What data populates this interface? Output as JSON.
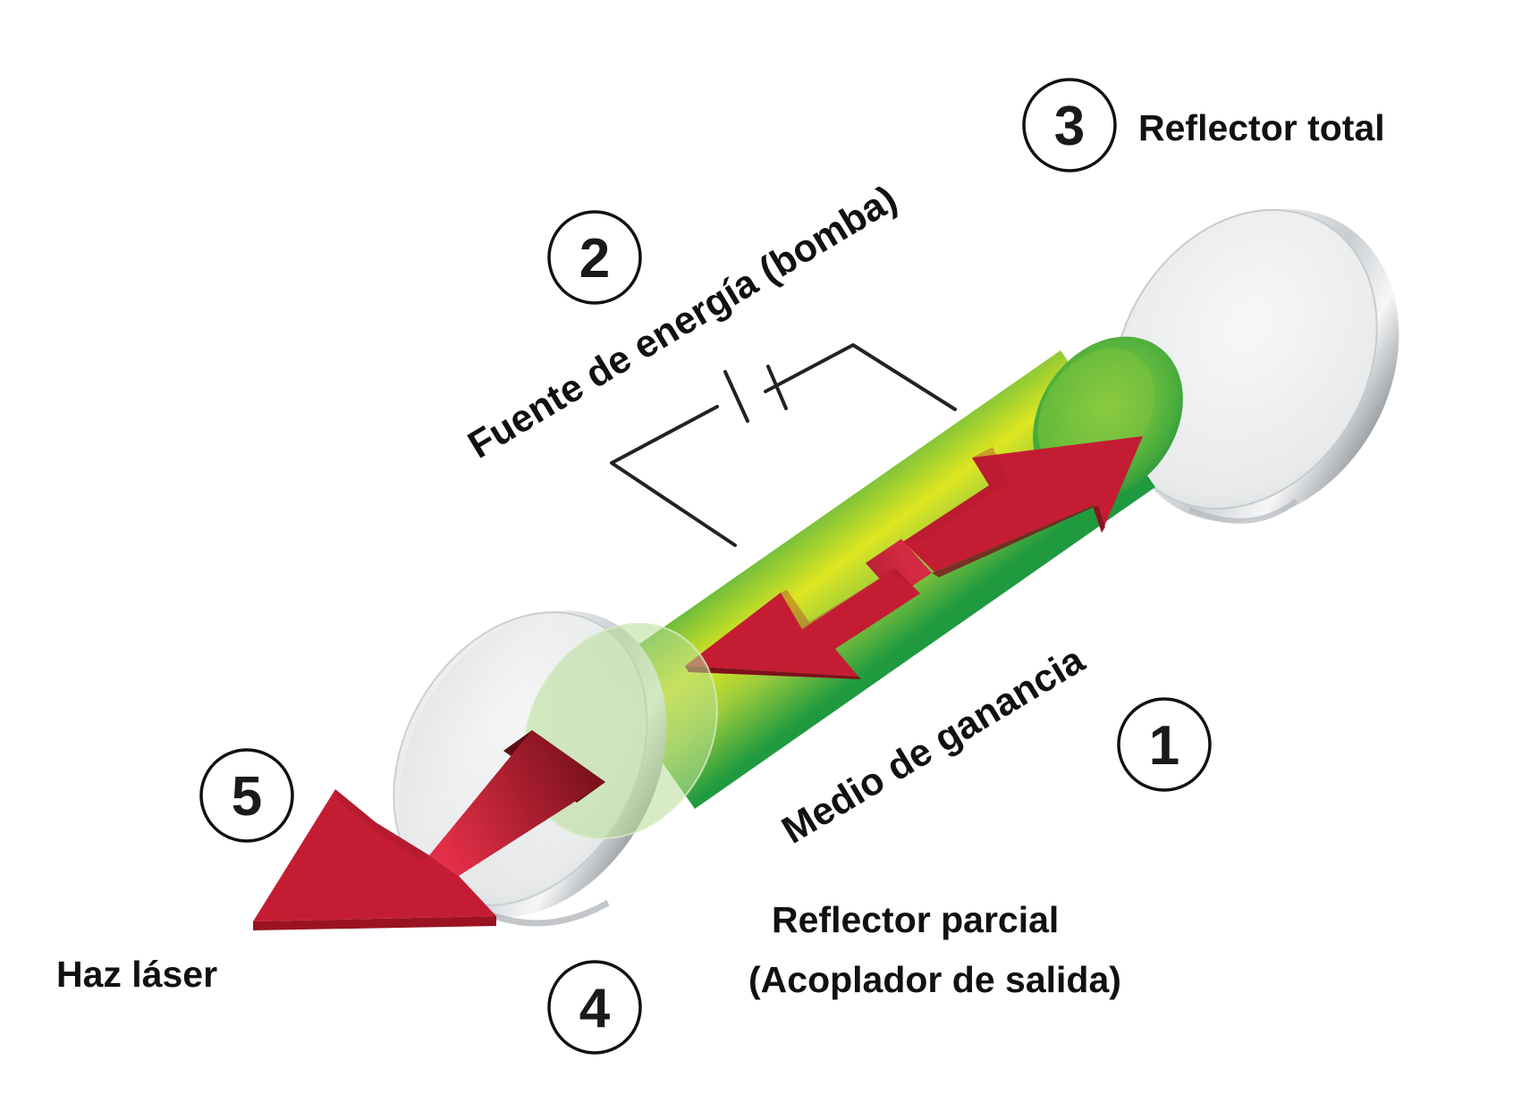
{
  "labels": {
    "gain_medium": "Medio de ganancia",
    "energy_source": "Fuente de energía (bomba)",
    "total_reflector": "Reflector total",
    "partial_reflector_line1": "Reflector parcial",
    "partial_reflector_line2": "(Acoplador de salida)",
    "laser_beam": "Haz láser"
  },
  "badges": {
    "gain_medium": "1",
    "energy_source": "2",
    "total_reflector": "3",
    "partial_reflector": "4",
    "laser_beam": "5"
  },
  "colors": {
    "gain_medium_dark": "#1f9a3f",
    "gain_medium_light": "#d8e41f",
    "beam_red": "#e8304a",
    "beam_dark": "#8e1621",
    "mirror": "#eceeef",
    "wire": "#222222"
  }
}
